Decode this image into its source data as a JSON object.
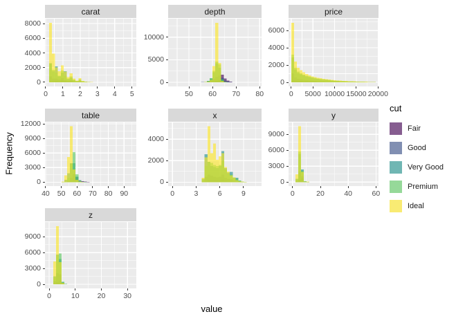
{
  "figure": {
    "x_axis_title": "value",
    "y_axis_title": "Frequency"
  },
  "legend": {
    "title": "cut",
    "fill_opacity": 0.62,
    "entries": [
      {
        "label": "Fair",
        "color": "#440154"
      },
      {
        "label": "Good",
        "color": "#3b528b"
      },
      {
        "label": "Very Good",
        "color": "#21918c"
      },
      {
        "label": "Premium",
        "color": "#5ec962"
      },
      {
        "label": "Ideal",
        "color": "#fde725"
      }
    ]
  },
  "theme": {
    "panel_bg": "#ebebeb",
    "grid": "#ffffff",
    "strip_bg": "#d9d9d9",
    "strip_text": "#1a1a1a",
    "tick_text": "#4d4d4d",
    "tick_mark": "#333333",
    "title_text": "#000000",
    "legend_key_bg": "#f2f2f2"
  },
  "chart_data": {
    "type": "bar",
    "subtype": "faceted-overlapping-histograms",
    "note": "7 facets with free x/y scales; translucent histograms overlaid by cut (drawn Fair first, Ideal last, fill-opacity 0.62)",
    "cuts": [
      "Fair",
      "Good",
      "Very Good",
      "Premium",
      "Ideal"
    ],
    "colors": {
      "Fair": "#440154",
      "Good": "#3b528b",
      "Very Good": "#21918c",
      "Premium": "#5ec962",
      "Ideal": "#fde725"
    },
    "facets": [
      {
        "name": "carat",
        "xlim": [
          -0.04,
          5.25
        ],
        "ylim": [
          -570,
          8670
        ],
        "x_ticks": [
          0,
          1,
          2,
          3,
          4,
          5
        ],
        "y_ticks": [
          0,
          2000,
          4000,
          6000,
          8000
        ],
        "bin_width": 0.17,
        "bin_centers": [
          0.285,
          0.455,
          0.625,
          0.795,
          0.965,
          1.135,
          1.305,
          1.475,
          1.645,
          1.815,
          1.985,
          2.155,
          2.325,
          2.495,
          2.665,
          2.835,
          3.005
        ],
        "series": {
          "Fair": [
            60,
            120,
            180,
            160,
            300,
            180,
            100,
            150,
            80,
            50,
            110,
            50,
            25,
            15,
            8,
            4,
            2
          ],
          "Good": [
            800,
            500,
            500,
            350,
            550,
            300,
            180,
            280,
            130,
            70,
            150,
            60,
            25,
            15,
            6,
            3,
            2
          ],
          "Very Good": [
            2600,
            1500,
            2150,
            800,
            1300,
            1500,
            400,
            600,
            280,
            140,
            300,
            120,
            50,
            30,
            12,
            6,
            3
          ],
          "Premium": [
            2600,
            1700,
            1300,
            900,
            1600,
            900,
            500,
            800,
            350,
            180,
            400,
            160,
            70,
            40,
            15,
            8,
            4
          ],
          "Ideal": [
            8100,
            3900,
            2000,
            1500,
            2300,
            1450,
            700,
            1200,
            500,
            250,
            550,
            200,
            90,
            50,
            20,
            10,
            5
          ]
        }
      },
      {
        "name": "depth",
        "xlim": [
          41.2,
          80.8
        ],
        "ylim": [
          -920,
          14120
        ],
        "x_ticks": [
          50,
          60,
          70,
          80
        ],
        "y_ticks": [
          0,
          5000,
          10000
        ],
        "bin_width": 1.2,
        "bin_centers": [
          55.8,
          57.0,
          58.2,
          59.4,
          60.6,
          61.8,
          63.0,
          64.2,
          65.4,
          66.6,
          67.8
        ],
        "series": {
          "Fair": [
            30,
            60,
            100,
            150,
            220,
            320,
            500,
            1700,
            850,
            380,
            140
          ],
          "Good": [
            40,
            110,
            280,
            480,
            800,
            1250,
            1500,
            1000,
            400,
            140,
            45
          ],
          "Very Good": [
            30,
            100,
            340,
            880,
            2200,
            4200,
            3200,
            700,
            150,
            40,
            10
          ],
          "Premium": [
            20,
            80,
            300,
            900,
            2500,
            4600,
            4000,
            600,
            80,
            20,
            5
          ],
          "Ideal": [
            10,
            40,
            120,
            500,
            3600,
            13200,
            4300,
            300,
            40,
            10,
            3
          ]
        }
      },
      {
        "name": "price",
        "xlim": [
          -600,
          20100
        ],
        "ylim": [
          -480,
          7380
        ],
        "x_ticks": [
          0,
          5000,
          10000,
          15000,
          20000
        ],
        "y_ticks": [
          0,
          2000,
          4000,
          6000
        ],
        "bin_width": 650,
        "bin_centers": [
          325,
          975,
          1625,
          2275,
          2925,
          3575,
          4225,
          4875,
          5525,
          6175,
          6825,
          7475,
          8125,
          8775,
          9425,
          10075,
          10725,
          11375,
          12025,
          12675,
          13325,
          13975,
          14625,
          15275,
          15925,
          16575,
          17225,
          17875,
          18525,
          19175
        ],
        "series": {
          "Fair": [
            260,
            210,
            175,
            148,
            126,
            108,
            93,
            80,
            69,
            60,
            52,
            45,
            39,
            34,
            30,
            26,
            22,
            19,
            17,
            15,
            13,
            11,
            10,
            8,
            7,
            6,
            5,
            5,
            4,
            3
          ],
          "Good": [
            1050,
            560,
            420,
            350,
            295,
            253,
            218,
            188,
            163,
            141,
            122,
            106,
            92,
            80,
            70,
            61,
            53,
            46,
            40,
            35,
            30,
            26,
            23,
            20,
            17,
            15,
            13,
            11,
            10,
            8
          ],
          "Very Good": [
            2900,
            1500,
            1100,
            920,
            790,
            680,
            590,
            510,
            450,
            390,
            340,
            300,
            265,
            232,
            205,
            180,
            158,
            140,
            123,
            108,
            95,
            84,
            74,
            65,
            57,
            50,
            44,
            38,
            33,
            29
          ],
          "Premium": [
            3200,
            1700,
            1250,
            1050,
            900,
            780,
            680,
            590,
            520,
            460,
            400,
            350,
            310,
            275,
            245,
            215,
            190,
            170,
            150,
            132,
            118,
            105,
            92,
            82,
            72,
            64,
            56,
            49,
            43,
            38
          ],
          "Ideal": [
            6900,
            2400,
            1700,
            1400,
            1150,
            950,
            800,
            700,
            620,
            540,
            470,
            410,
            360,
            320,
            280,
            250,
            220,
            195,
            175,
            155,
            140,
            125,
            110,
            100,
            88,
            78,
            68,
            60,
            52,
            45
          ]
        }
      },
      {
        "name": "table",
        "xlim": [
          39.6,
          97.8
        ],
        "ylim": [
          -800,
          12300
        ],
        "x_ticks": [
          40,
          50,
          60,
          70,
          80,
          90
        ],
        "y_ticks": [
          0,
          3000,
          6000,
          9000,
          12000
        ],
        "bin_width": 1.8,
        "bin_centers": [
          51,
          52.8,
          54.6,
          56.4,
          58.2,
          60,
          61.8,
          63.6,
          65.4,
          67.2,
          69
        ],
        "series": {
          "Fair": [
            5,
            15,
            60,
            180,
            300,
            350,
            280,
            180,
            90,
            40,
            15
          ],
          "Good": [
            10,
            60,
            280,
            900,
            1600,
            1100,
            420,
            130,
            40,
            10,
            3
          ],
          "Very Good": [
            60,
            450,
            1800,
            3900,
            3900,
            1100,
            280,
            70,
            18,
            5,
            2
          ],
          "Premium": [
            20,
            150,
            900,
            3800,
            6200,
            1600,
            350,
            80,
            20,
            5,
            2
          ],
          "Ideal": [
            150,
            1400,
            5200,
            11500,
            2600,
            480,
            120,
            30,
            8,
            2,
            1
          ]
        }
      },
      {
        "name": "x",
        "xlim": [
          -0.54,
          11.28
        ],
        "ylim": [
          -360,
          5560
        ],
        "x_ticks": [
          0,
          3,
          6,
          9
        ],
        "y_ticks": [
          0,
          2000,
          4000
        ],
        "bin_width": 0.355,
        "bin_centers": [
          3.9,
          4.255,
          4.61,
          4.965,
          5.32,
          5.675,
          6.03,
          6.385,
          6.74,
          7.095,
          7.45,
          7.805,
          8.16,
          8.515,
          8.87,
          9.225,
          9.58
        ],
        "series": {
          "Fair": [
            20,
            80,
            150,
            200,
            180,
            160,
            170,
            220,
            150,
            120,
            100,
            70,
            50,
            30,
            15,
            6,
            2
          ],
          "Good": [
            120,
            500,
            700,
            600,
            500,
            450,
            500,
            700,
            400,
            300,
            280,
            160,
            120,
            60,
            25,
            10,
            4
          ],
          "Very Good": [
            300,
            2600,
            1900,
            1500,
            1400,
            1300,
            1500,
            2900,
            1300,
            900,
            950,
            400,
            420,
            150,
            60,
            25,
            8
          ],
          "Premium": [
            250,
            1500,
            1900,
            1800,
            1600,
            1500,
            1600,
            2000,
            1200,
            800,
            700,
            450,
            300,
            150,
            70,
            25,
            8
          ],
          "Ideal": [
            400,
            2300,
            5200,
            2700,
            3600,
            2100,
            2400,
            2700,
            1400,
            1000,
            650,
            450,
            200,
            100,
            45,
            15,
            5
          ]
        }
      },
      {
        "name": "y",
        "xlim": [
          -2.9,
          61.8
        ],
        "ylim": [
          -740,
          11240
        ],
        "x_ticks": [
          0,
          20,
          40,
          60
        ],
        "y_ticks": [
          0,
          3000,
          6000,
          9000
        ],
        "bin_width": 2,
        "bin_centers": [
          3,
          5,
          7,
          9,
          11
        ],
        "series": {
          "Fair": [
            30,
            500,
            700,
            40,
            20
          ],
          "Good": [
            250,
            2000,
            1100,
            60,
            30
          ],
          "Very Good": [
            600,
            5300,
            2400,
            140,
            50
          ],
          "Premium": [
            500,
            5800,
            2100,
            150,
            60
          ],
          "Ideal": [
            1500,
            10500,
            1900,
            100,
            80
          ]
        }
      },
      {
        "name": "z",
        "xlim": [
          -1.6,
          33.4
        ],
        "ylim": [
          -770,
          11770
        ],
        "x_ticks": [
          0,
          10,
          20,
          30
        ],
        "y_ticks": [
          0,
          3000,
          6000,
          9000
        ],
        "bin_width": 1.06,
        "bin_centers": [
          2.12,
          3.18,
          4.24,
          5.3,
          6.36
        ],
        "series": {
          "Fair": [
            100,
            500,
            700,
            200,
            40
          ],
          "Good": [
            600,
            2100,
            1900,
            250,
            30
          ],
          "Very Good": [
            1500,
            5600,
            4800,
            450,
            50
          ],
          "Premium": [
            1400,
            5500,
            5800,
            500,
            60
          ],
          "Ideal": [
            4300,
            11000,
            4200,
            300,
            30
          ]
        }
      }
    ]
  }
}
